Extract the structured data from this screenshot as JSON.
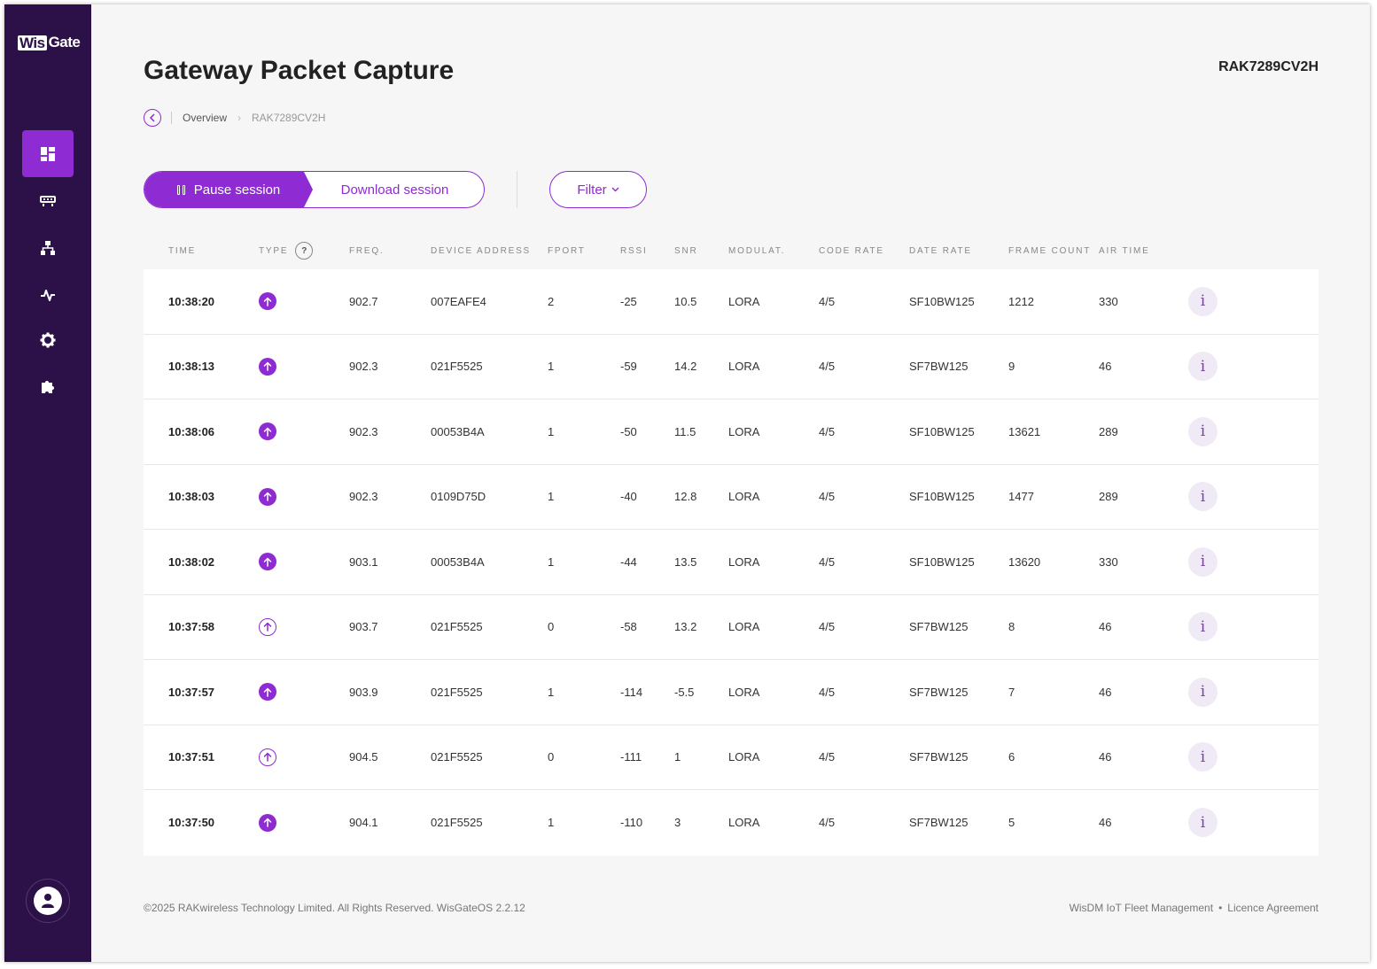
{
  "app": {
    "logo_box": "Wis",
    "logo_text": "Gate"
  },
  "page": {
    "title": "Gateway Packet Capture",
    "gateway_name": "RAK7289CV2H"
  },
  "breadcrumb": {
    "items": [
      "Overview",
      "RAK7289CV2H"
    ]
  },
  "toolbar": {
    "pause_label": "Pause session",
    "download_label": "Download session",
    "filter_label": "Filter"
  },
  "table": {
    "columns": [
      "TIME",
      "TYPE",
      "FREQ.",
      "DEVICE ADDRESS",
      "FPORT",
      "RSSI",
      "SNR",
      "MODULAT.",
      "CODE RATE",
      "DATE RATE",
      "FRAME COUNT",
      "AIR TIME"
    ],
    "type_help": "?",
    "info_label": "i",
    "rows": [
      {
        "time": "10:38:20",
        "type": "uplink-filled",
        "freq": "902.7",
        "addr": "007EAFE4",
        "fport": "2",
        "rssi": "-25",
        "snr": "10.5",
        "mod": "LORA",
        "cr": "4/5",
        "dr": "SF10BW125",
        "fcnt": "1212",
        "air": "330"
      },
      {
        "time": "10:38:13",
        "type": "uplink-filled",
        "freq": "902.3",
        "addr": "021F5525",
        "fport": "1",
        "rssi": "-59",
        "snr": "14.2",
        "mod": "LORA",
        "cr": "4/5",
        "dr": "SF7BW125",
        "fcnt": "9",
        "air": "46"
      },
      {
        "time": "10:38:06",
        "type": "uplink-filled",
        "freq": "902.3",
        "addr": "00053B4A",
        "fport": "1",
        "rssi": "-50",
        "snr": "11.5",
        "mod": "LORA",
        "cr": "4/5",
        "dr": "SF10BW125",
        "fcnt": "13621",
        "air": "289"
      },
      {
        "time": "10:38:03",
        "type": "uplink-filled",
        "freq": "902.3",
        "addr": "0109D75D",
        "fport": "1",
        "rssi": "-40",
        "snr": "12.8",
        "mod": "LORA",
        "cr": "4/5",
        "dr": "SF10BW125",
        "fcnt": "1477",
        "air": "289"
      },
      {
        "time": "10:38:02",
        "type": "uplink-filled",
        "freq": "903.1",
        "addr": "00053B4A",
        "fport": "1",
        "rssi": "-44",
        "snr": "13.5",
        "mod": "LORA",
        "cr": "4/5",
        "dr": "SF10BW125",
        "fcnt": "13620",
        "air": "330"
      },
      {
        "time": "10:37:58",
        "type": "uplink-outline",
        "freq": "903.7",
        "addr": "021F5525",
        "fport": "0",
        "rssi": "-58",
        "snr": "13.2",
        "mod": "LORA",
        "cr": "4/5",
        "dr": "SF7BW125",
        "fcnt": "8",
        "air": "46"
      },
      {
        "time": "10:37:57",
        "type": "uplink-filled",
        "freq": "903.9",
        "addr": "021F5525",
        "fport": "1",
        "rssi": "-114",
        "snr": "-5.5",
        "mod": "LORA",
        "cr": "4/5",
        "dr": "SF7BW125",
        "fcnt": "7",
        "air": "46"
      },
      {
        "time": "10:37:51",
        "type": "uplink-outline",
        "freq": "904.5",
        "addr": "021F5525",
        "fport": "0",
        "rssi": "-111",
        "snr": "1",
        "mod": "LORA",
        "cr": "4/5",
        "dr": "SF7BW125",
        "fcnt": "6",
        "air": "46"
      },
      {
        "time": "10:37:50",
        "type": "uplink-filled",
        "freq": "904.1",
        "addr": "021F5525",
        "fport": "1",
        "rssi": "-110",
        "snr": "3",
        "mod": "LORA",
        "cr": "4/5",
        "dr": "SF7BW125",
        "fcnt": "5",
        "air": "46"
      }
    ]
  },
  "footer": {
    "copyright": "©2025 RAKwireless Technology Limited. All Rights Reserved. WisGateOS 2.2.12",
    "link1": "WisDM IoT Fleet Management",
    "separator": "•",
    "link2": "Licence Agreement"
  },
  "colors": {
    "accent": "#8e2bd2",
    "sidebar": "#2c1048",
    "background": "#f6f6f7"
  },
  "icons": [
    "dashboard-icon",
    "gateway-icon",
    "network-icon",
    "activity-icon",
    "settings-icon",
    "extensions-icon",
    "user-icon"
  ]
}
